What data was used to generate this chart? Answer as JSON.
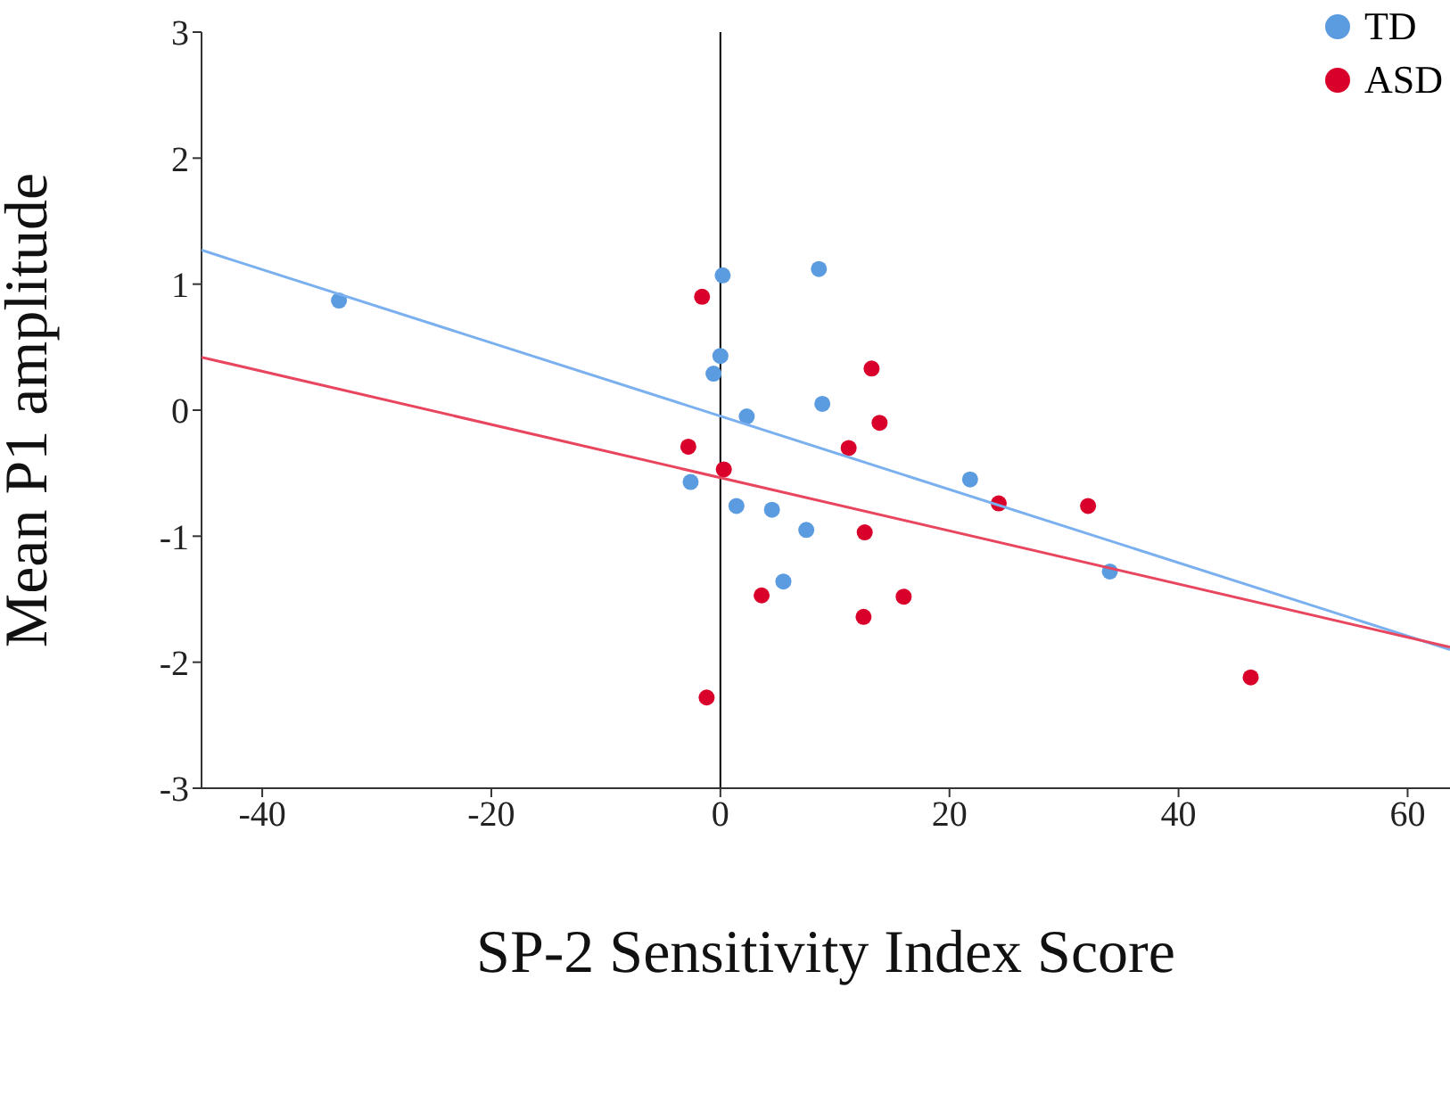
{
  "chart_data": {
    "type": "scatter",
    "xlabel": "SP-2 Sensitivity Index Score",
    "ylabel": "Mean P1 amplitude",
    "xlim": [
      -45.3,
      63.7
    ],
    "ylim": [
      -3,
      3
    ],
    "xticks": [
      -40,
      -20,
      0,
      20,
      40,
      60
    ],
    "yticks": [
      -3,
      -2,
      -1,
      0,
      1,
      2,
      3
    ],
    "grid": false,
    "legend": "top right",
    "marker": "circle",
    "ref_lines": [
      {
        "axis": "x",
        "value": 0,
        "color": "#000000"
      }
    ],
    "series": [
      {
        "name": "TD",
        "color": "#5b9be0",
        "x": [
          -33.3,
          0.2,
          8.6,
          0,
          -0.6,
          2.3,
          8.9,
          -2.6,
          1.4,
          4.5,
          7.5,
          5.5,
          21.8,
          34.0
        ],
        "values": [
          0.87,
          1.07,
          1.12,
          0.43,
          0.29,
          -0.05,
          0.05,
          -0.57,
          -0.76,
          -0.79,
          -0.95,
          -1.36,
          -0.55,
          -1.28
        ]
      },
      {
        "name": "ASD",
        "color": "#d9002b",
        "x": [
          -1.6,
          13.2,
          13.9,
          11.2,
          -2.8,
          0.3,
          12.6,
          3.6,
          16.0,
          12.5,
          -1.2,
          24.3,
          32.1,
          46.3
        ],
        "values": [
          0.9,
          0.33,
          -0.1,
          -0.3,
          -0.29,
          -0.47,
          -0.97,
          -1.47,
          -1.48,
          -1.64,
          -2.28,
          -0.74,
          -0.76,
          -2.12
        ]
      },
      {
        "type": "line",
        "marker": "none",
        "color": "#7ab0f0",
        "x": [
          -45.3,
          63.7
        ],
        "values": [
          1.27,
          -1.9
        ]
      },
      {
        "type": "line",
        "marker": "none",
        "color": "#e8455f",
        "x": [
          -45.3,
          63.7
        ],
        "values": [
          0.42,
          -1.88
        ]
      }
    ]
  }
}
